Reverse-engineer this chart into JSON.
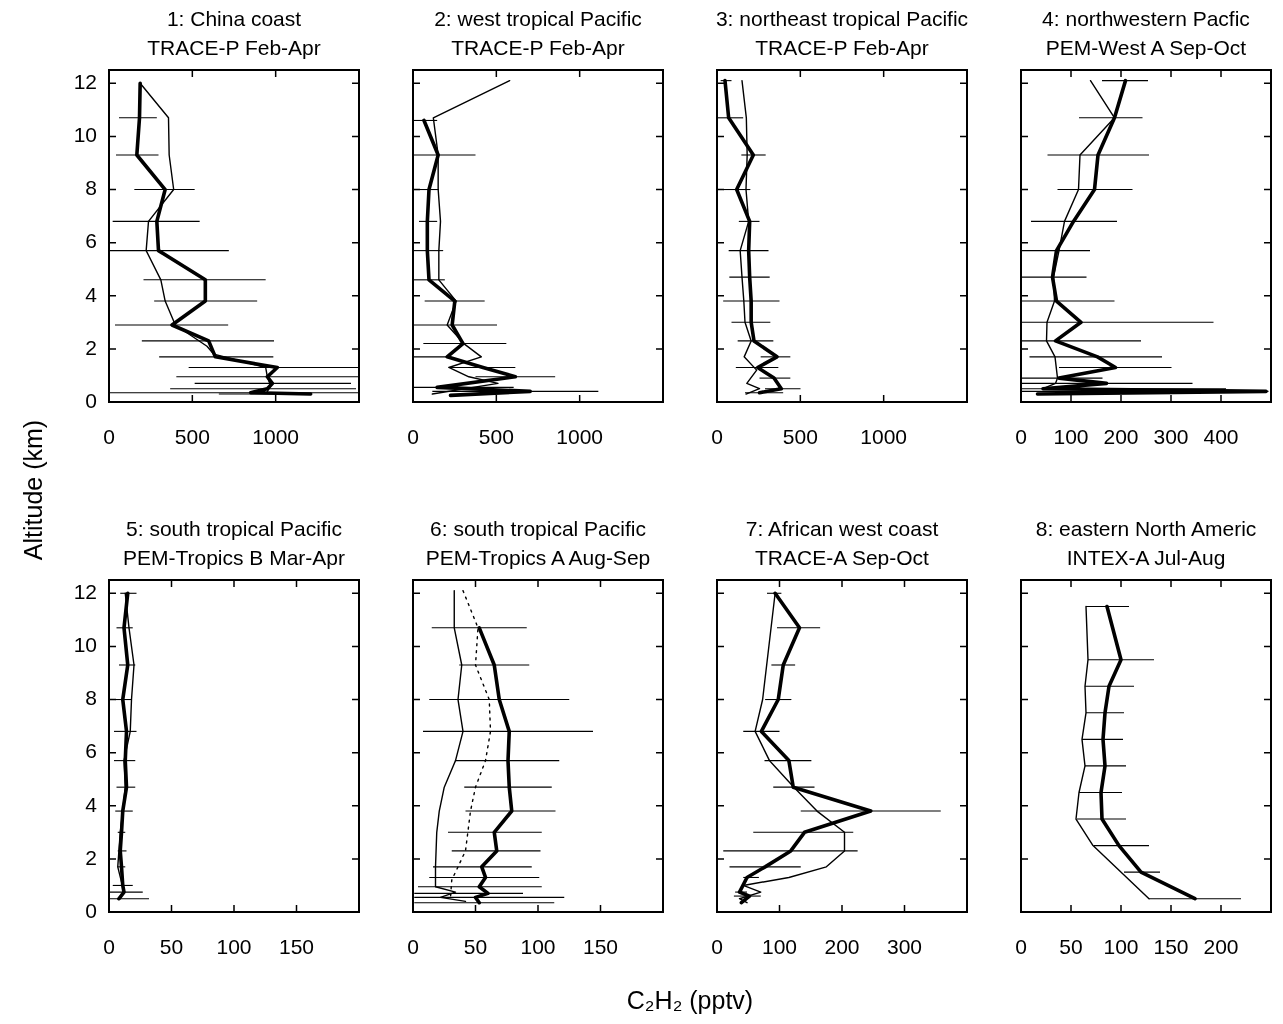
{
  "chart_data": [
    {
      "type": "line",
      "title": "1: China coast",
      "subtitle": "TRACE-P Feb-Apr",
      "ylabel": "Altitude (km)",
      "xlim": [
        0,
        1500
      ],
      "xticks": [
        0,
        500,
        1000
      ],
      "ylim": [
        0,
        12.5
      ],
      "yticks": [
        0,
        2,
        4,
        6,
        8,
        10,
        12
      ],
      "series": [
        {
          "color": "#000000",
          "x": [
            187,
            183,
            167,
            337,
            287,
            297,
            578,
            578,
            378,
            598,
            638,
            1010,
            950,
            980,
            950,
            850,
            1210
          ],
          "values": [
            12.0,
            10.7,
            9.3,
            8.0,
            6.8,
            5.7,
            4.6,
            3.8,
            2.9,
            2.3,
            1.7,
            1.3,
            0.95,
            0.7,
            0.5,
            0.35,
            0.3
          ],
          "xerrors": [
            null,
            [
              60,
              287
            ],
            [
              42,
              297
            ],
            [
              152,
              514
            ],
            [
              22,
              544
            ],
            [
              0,
              719
            ],
            [
              207,
              940
            ],
            [
              271,
              889
            ],
            [
              36,
              715
            ],
            [
              197,
              990
            ],
            [
              301,
              986
            ],
            [
              478,
              1500
            ],
            [
              404,
              1500
            ],
            [
              514,
              1452
            ],
            [
              367,
              1482
            ],
            [
              0,
              1500
            ],
            [
              659,
              1050
            ]
          ]
        },
        {
          "color": "#000000",
          "x": [
            187,
            357,
            361,
            388,
            237,
            223,
            311,
            337,
            398,
            588,
            629,
            940,
            950,
            970,
            950
          ],
          "values": [
            12.0,
            10.7,
            9.3,
            8.0,
            6.8,
            5.7,
            4.6,
            3.8,
            2.9,
            2.1,
            1.8,
            1.3,
            0.95,
            0.6,
            0.4
          ]
        }
      ]
    },
    {
      "type": "line",
      "title": "2: west tropical Pacific",
      "subtitle": "TRACE-P Feb-Apr",
      "xlim": [
        0,
        1500
      ],
      "xticks": [
        0,
        500,
        1000
      ],
      "ylim": [
        0,
        12.5
      ],
      "yticks": [
        0,
        2,
        4,
        6,
        8,
        10,
        12
      ],
      "tick_labels": "x",
      "series": [
        {
          "color": "#000000",
          "x": [
            66,
            151,
            96,
            86,
            86,
            96,
            251,
            235,
            300,
            205,
            420,
            614,
            145,
            703,
            225
          ],
          "values": [
            10.6,
            9.3,
            8.0,
            6.8,
            5.7,
            4.6,
            3.8,
            2.9,
            2.2,
            1.7,
            1.3,
            0.95,
            0.55,
            0.4,
            0.25
          ],
          "xerrors": [
            [
              0,
              145
            ],
            [
              0,
              375
            ],
            [
              0,
              155
            ],
            [
              36,
              145
            ],
            [
              0,
              181
            ],
            [
              0,
              191
            ],
            [
              70,
              430
            ],
            [
              0,
              504
            ],
            [
              62,
              560
            ],
            [
              0,
              211
            ],
            [
              215,
              614
            ],
            [
              375,
              853
            ],
            [
              0,
              604
            ],
            [
              116,
              1112
            ],
            null
          ]
        },
        {
          "color": "#000000",
          "x": [
            580,
            122,
            151,
            151,
            165,
            155,
            155,
            259,
            205,
            305,
            410,
            215,
            335,
            510,
            116
          ],
          "values": [
            12.1,
            10.7,
            9.3,
            8.0,
            6.8,
            5.7,
            4.6,
            3.8,
            2.9,
            2.2,
            1.7,
            1.3,
            0.95,
            0.7,
            0.3
          ]
        }
      ]
    },
    {
      "type": "line",
      "title": "3: northeast tropical Pacific",
      "subtitle": "TRACE-P Feb-Apr",
      "xlim": [
        0,
        1500
      ],
      "xticks": [
        0,
        500,
        1000
      ],
      "ylim": [
        0,
        12.5
      ],
      "yticks": [
        0,
        2,
        4,
        6,
        8,
        10,
        12
      ],
      "tick_labels": "x",
      "series": [
        {
          "color": "#000000",
          "x": [
            48,
            70,
            218,
            118,
            196,
            190,
            196,
            205,
            205,
            222,
            360,
            244,
            342,
            386,
            255
          ],
          "values": [
            12.1,
            10.7,
            9.3,
            8.0,
            6.8,
            5.7,
            4.7,
            3.8,
            3.0,
            2.3,
            1.7,
            1.3,
            0.9,
            0.5,
            0.35
          ],
          "xerrors": [
            [
              22,
              87
            ],
            [
              0,
              157
            ],
            [
              146,
              292
            ],
            [
              37,
              200
            ],
            [
              131,
              255
            ],
            [
              70,
              309
            ],
            [
              74,
              316
            ],
            [
              37,
              375
            ],
            [
              87,
              320
            ],
            [
              124,
              338
            ],
            [
              262,
              440
            ],
            [
              113,
              368
            ],
            [
              255,
              440
            ],
            [
              288,
              501
            ],
            [
              168,
              397
            ]
          ]
        },
        {
          "color": "#000000",
          "x": [
            150,
            176,
            181,
            174,
            190,
            139,
            150,
            161,
            168,
            205,
            163,
            238,
            179,
            255,
            174
          ],
          "values": [
            12.1,
            10.7,
            9.3,
            8.0,
            6.8,
            5.7,
            4.7,
            3.8,
            3.0,
            2.3,
            1.7,
            1.2,
            0.7,
            0.5,
            0.3
          ]
        }
      ]
    },
    {
      "type": "line",
      "title": "4: northwestern Pacfic",
      "subtitle": "PEM-West A Sep-Oct",
      "xlim": [
        0,
        500
      ],
      "xticks": [
        0,
        100,
        200,
        300,
        400
      ],
      "ylim": [
        0,
        12.5
      ],
      "yticks": [
        0,
        2,
        4,
        6,
        8,
        10,
        12
      ],
      "tick_labels": "x",
      "series": [
        {
          "color": "#000000",
          "x": [
            209,
            187,
            154,
            147,
            105,
            71,
            63,
            71,
            120,
            69,
            153,
            189,
            76,
            171,
            44,
            490,
            33
          ],
          "values": [
            12.1,
            10.7,
            9.3,
            8.0,
            6.8,
            5.7,
            4.7,
            3.8,
            3.0,
            2.3,
            1.7,
            1.3,
            0.9,
            0.7,
            0.5,
            0.4,
            0.3
          ],
          "xerrors": [
            [
              162,
              254
            ],
            [
              116,
              243
            ],
            [
              53,
              256
            ],
            [
              73,
              223
            ],
            [
              20,
              192
            ],
            [
              0,
              138
            ],
            [
              0,
              131
            ],
            [
              0,
              187
            ],
            [
              0,
              385
            ],
            [
              0,
              240
            ],
            [
              17,
              282
            ],
            [
              76,
              301
            ],
            [
              0,
              163
            ],
            [
              0,
              343
            ],
            [
              0,
              410
            ],
            [
              0,
              495
            ],
            null
          ]
        },
        {
          "color": "#000000",
          "x": [
            139,
            187,
            118,
            115,
            87,
            76,
            65,
            67,
            52,
            51,
            68,
            73,
            69,
            44
          ],
          "values": [
            12.1,
            10.7,
            9.3,
            8.0,
            6.8,
            5.7,
            4.7,
            3.8,
            3.0,
            2.3,
            1.7,
            0.9,
            0.7,
            0.5
          ]
        }
      ]
    },
    {
      "type": "line",
      "title": "5: south tropical Pacific",
      "subtitle": "PEM-Tropics B Mar-Apr",
      "xlim": [
        0,
        200
      ],
      "xticks": [
        0,
        50,
        100,
        150
      ],
      "ylim": [
        0,
        12.5
      ],
      "yticks": [
        0,
        2,
        4,
        6,
        8,
        10,
        12
      ],
      "series": [
        {
          "color": "#000000",
          "x": [
            15,
            12,
            15,
            11,
            14,
            13,
            14,
            11,
            10,
            9,
            10,
            11,
            12,
            8
          ],
          "values": [
            12.0,
            10.7,
            9.3,
            8.0,
            6.8,
            5.7,
            4.7,
            3.8,
            3.0,
            2.3,
            1.7,
            1.0,
            0.75,
            0.5
          ],
          "xerrors": [
            [
              9,
              22
            ],
            [
              6,
              19
            ],
            [
              8,
              21
            ],
            [
              5,
              18
            ],
            [
              4,
              22
            ],
            [
              4,
              21
            ],
            [
              6,
              21
            ],
            [
              5,
              19
            ],
            [
              7,
              13
            ],
            [
              7,
              14
            ],
            [
              7,
              13
            ],
            [
              3,
              19
            ],
            [
              0,
              27
            ],
            [
              0,
              32
            ]
          ]
        },
        {
          "color": "#000000",
          "x": [
            13,
            16,
            20,
            18,
            17,
            12,
            13,
            11,
            9,
            7,
            12,
            7
          ],
          "values": [
            12.0,
            10.7,
            9.3,
            8.0,
            6.8,
            5.7,
            4.7,
            3.8,
            3.0,
            1.7,
            0.75,
            0.5
          ]
        }
      ]
    },
    {
      "type": "line",
      "title": "6: south tropical Pacific",
      "subtitle": "PEM-Tropics A Aug-Sep",
      "xlabel": "C₂H₂ (pptv)",
      "xlim": [
        0,
        200
      ],
      "xticks": [
        0,
        50,
        100,
        150
      ],
      "ylim": [
        0,
        12.5
      ],
      "yticks": [
        0,
        2,
        4,
        6,
        8,
        10,
        12
      ],
      "tick_labels": "x",
      "series": [
        {
          "color": "#000000",
          "x": [
            53,
            65,
            69,
            77,
            76,
            77,
            79,
            65,
            67,
            55,
            58,
            53,
            60,
            50,
            53
          ],
          "values": [
            10.7,
            9.3,
            8.0,
            6.8,
            5.7,
            4.7,
            3.8,
            3.0,
            2.3,
            1.7,
            1.3,
            0.95,
            0.7,
            0.55,
            0.35
          ],
          "xerrors": [
            [
              15,
              91
            ],
            [
              37,
              93
            ],
            [
              13,
              125
            ],
            [
              8,
              144
            ],
            [
              34,
              117
            ],
            [
              41,
              111
            ],
            [
              42,
              114
            ],
            [
              28,
              103
            ],
            [
              31,
              102
            ],
            [
              16,
              95
            ],
            [
              13,
              101
            ],
            [
              4,
              103
            ],
            [
              1,
              88
            ],
            [
              1,
              121
            ],
            [
              1,
              113
            ]
          ]
        },
        {
          "color": "#000000",
          "x": [
            33,
            33,
            39,
            36,
            40,
            34,
            25,
            21,
            19,
            18,
            18,
            34,
            22,
            42
          ],
          "values": [
            12.1,
            10.7,
            9.3,
            8.0,
            6.8,
            5.7,
            4.7,
            3.8,
            3.0,
            1.7,
            0.95,
            0.75,
            0.55,
            0.4
          ]
        },
        {
          "color": "#000000",
          "line_style": "dotted",
          "x": [
            40,
            52,
            50,
            61,
            62,
            58,
            50,
            46,
            42,
            31,
            30
          ],
          "values": [
            12.1,
            10.7,
            9.3,
            8.0,
            6.8,
            5.7,
            4.7,
            3.8,
            2.3,
            1.2,
            0.55
          ]
        }
      ]
    },
    {
      "type": "line",
      "title": "7: African west coast",
      "subtitle": "TRACE-A Sep-Oct",
      "xlim": [
        0,
        400
      ],
      "xticks": [
        0,
        100,
        200,
        300
      ],
      "ylim": [
        0,
        12.5
      ],
      "yticks": [
        0,
        2,
        4,
        6,
        8,
        10,
        12
      ],
      "tick_labels": "x",
      "series": [
        {
          "color": "#000000",
          "x": [
            93,
            132,
            106,
            98,
            71,
            115,
            122,
            246,
            140,
            118,
            77,
            48,
            36,
            52,
            39
          ],
          "values": [
            12.0,
            10.7,
            9.3,
            8.0,
            6.8,
            5.7,
            4.7,
            3.8,
            3.0,
            2.3,
            1.7,
            1.3,
            0.75,
            0.6,
            0.35
          ],
          "xerrors": [
            [
              80,
              103
            ],
            [
              96,
              165
            ],
            [
              87,
              125
            ],
            [
              77,
              119
            ],
            [
              42,
              100
            ],
            [
              76,
              151
            ],
            [
              90,
              156
            ],
            [
              134,
              358
            ],
            [
              58,
              218
            ],
            [
              10,
              225
            ],
            [
              20,
              134
            ],
            [
              42,
              67
            ],
            [
              29,
              48
            ],
            [
              27,
              70
            ],
            null
          ]
        },
        {
          "color": "#000000",
          "x": [
            93,
            73,
            61,
            84,
            123,
            160,
            204,
            204,
            175,
            115,
            42,
            70,
            36,
            48
          ],
          "values": [
            12.0,
            8.0,
            6.8,
            5.7,
            4.7,
            3.8,
            3.0,
            2.3,
            1.7,
            1.3,
            1.0,
            0.75,
            0.5,
            0.35
          ]
        }
      ]
    },
    {
      "type": "line",
      "title": "8: eastern North Americ",
      "subtitle": "INTEX-A Jul-Aug",
      "xlim": [
        0,
        250
      ],
      "xticks": [
        0,
        50,
        100,
        150,
        200
      ],
      "ylim": [
        0,
        12.5
      ],
      "yticks": [
        0,
        2,
        4,
        6,
        8,
        10,
        12
      ],
      "tick_labels": "x",
      "series": [
        {
          "color": "#000000",
          "x": [
            86,
            100,
            88,
            84,
            82,
            84,
            80,
            81,
            98,
            120,
            174
          ],
          "values": [
            11.5,
            9.5,
            8.5,
            7.5,
            6.5,
            5.5,
            4.5,
            3.5,
            2.5,
            1.5,
            0.5
          ],
          "xerrors": [
            [
              65,
              108
            ],
            [
              67,
              133
            ],
            [
              64,
              113
            ],
            [
              65,
              103
            ],
            [
              61,
              102
            ],
            [
              64,
              105
            ],
            [
              58,
              101
            ],
            [
              56,
              105
            ],
            [
              73,
              128
            ],
            [
              103,
              139
            ],
            [
              128,
              220
            ]
          ]
        },
        {
          "color": "#000000",
          "x": [
            65,
            67,
            64,
            65,
            61,
            64,
            58,
            55,
            72,
            128
          ],
          "values": [
            11.5,
            9.5,
            8.5,
            7.5,
            6.5,
            5.5,
            4.5,
            3.5,
            2.5,
            0.5
          ]
        }
      ]
    }
  ]
}
